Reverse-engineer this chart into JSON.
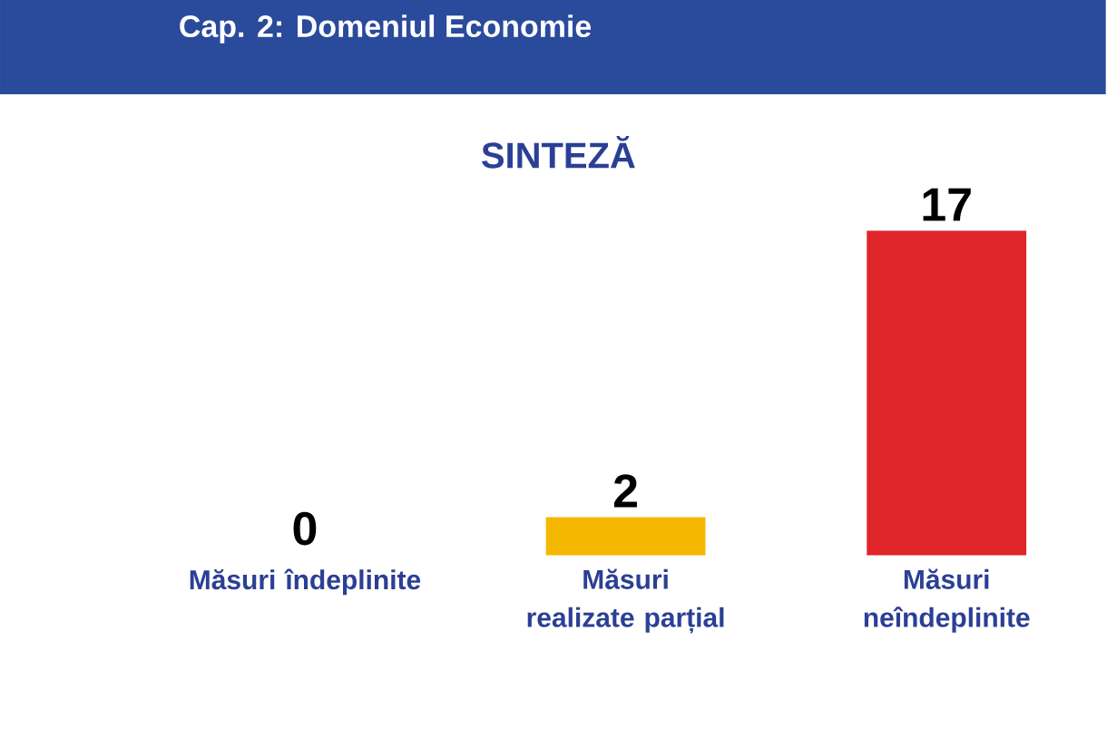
{
  "chart_data": {
    "type": "bar",
    "title": "Cap. 2: Domeniul Economie",
    "subtitle": "SINTEZĂ",
    "categories": [
      "Măsuri îndeplinite",
      "Măsuri realizate parțial",
      "Măsuri neîndeplinite"
    ],
    "values": [
      0,
      2,
      17
    ],
    "colors": [
      "#f5b800",
      "#f5b800",
      "#e0252b"
    ],
    "data_labels": true
  }
}
